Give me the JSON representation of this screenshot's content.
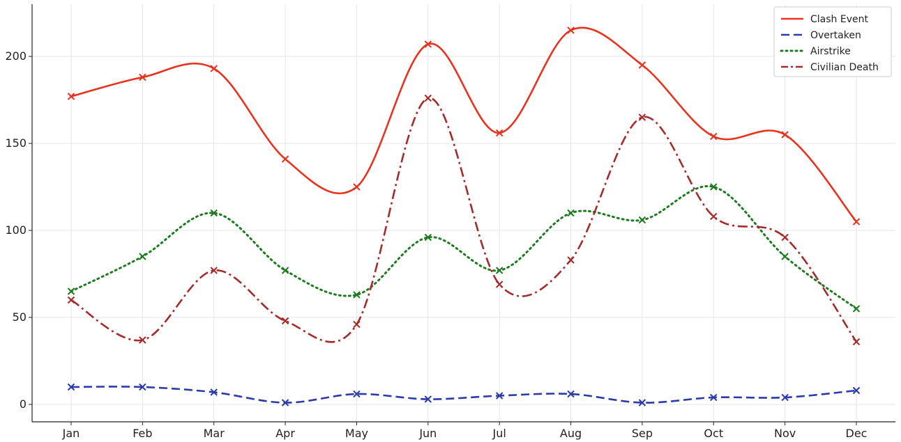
{
  "chart_data": {
    "type": "line",
    "categories": [
      "Jan",
      "Feb",
      "Mar",
      "Apr",
      "May",
      "Jun",
      "Jul",
      "Aug",
      "Sep",
      "Oct",
      "Nov",
      "Dec"
    ],
    "series": [
      {
        "name": "Clash Event",
        "color": "#e8321e",
        "dash": "solid",
        "values": [
          177,
          188,
          193,
          141,
          125,
          207,
          156,
          215,
          195,
          154,
          155,
          105
        ]
      },
      {
        "name": "Overtaken",
        "color": "#2b3aa8",
        "dash": "dashed",
        "values": [
          10,
          10,
          7,
          1,
          6,
          3,
          5,
          6,
          1,
          4,
          4,
          8
        ]
      },
      {
        "name": "Airstrike",
        "color": "#1e7a1e",
        "dash": "dotted",
        "values": [
          65,
          85,
          110,
          77,
          63,
          96,
          77,
          110,
          106,
          125,
          85,
          55
        ]
      },
      {
        "name": "Civilian Death",
        "color": "#a52a2a",
        "dash": "dashdot",
        "values": [
          60,
          37,
          77,
          48,
          46,
          176,
          69,
          83,
          165,
          108,
          96,
          36
        ]
      }
    ],
    "marker": "x",
    "smoothing": "spline",
    "ylim": [
      -10,
      230
    ],
    "yticks": [
      0,
      50,
      100,
      150,
      200
    ],
    "title": "",
    "xlabel": "",
    "ylabel": "",
    "grid": true,
    "legend": "top-right"
  }
}
